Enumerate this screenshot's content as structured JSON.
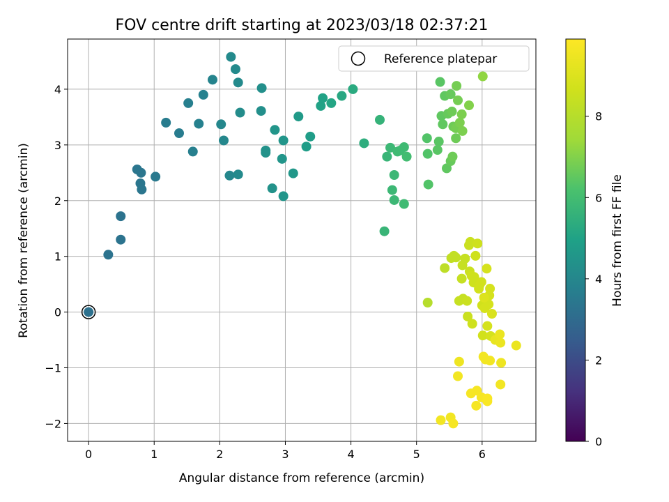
{
  "chart_data": {
    "type": "scatter",
    "title": "FOV centre drift starting at 2023/03/18 02:37:21",
    "xlabel": "Angular distance from reference (arcmin)",
    "ylabel": "Rotation from reference (arcmin)",
    "xlim": [
      -0.32,
      6.82
    ],
    "ylim": [
      -2.32,
      4.9
    ],
    "xticks": [
      0,
      1,
      2,
      3,
      4,
      5,
      6
    ],
    "yticks": [
      -2,
      -1,
      0,
      1,
      2,
      3,
      4
    ],
    "grid": true,
    "legend": {
      "label": "Reference platepar",
      "placement": "top-right"
    },
    "reference_point": {
      "x": 0,
      "y": 0
    },
    "colorbar": {
      "label": "Hours from first FF file",
      "colormap": "viridis",
      "range": [
        0,
        9.9
      ],
      "ticks": [
        0,
        2,
        4,
        6,
        8
      ]
    },
    "points": [
      {
        "x": 0.0,
        "y": 0.0,
        "c": 3.2
      },
      {
        "x": 0.3,
        "y": 1.03,
        "c": 3.3
      },
      {
        "x": 0.49,
        "y": 1.3,
        "c": 3.3
      },
      {
        "x": 0.49,
        "y": 1.72,
        "c": 3.3
      },
      {
        "x": 0.74,
        "y": 2.56,
        "c": 3.4
      },
      {
        "x": 0.8,
        "y": 2.5,
        "c": 3.4
      },
      {
        "x": 0.79,
        "y": 2.31,
        "c": 3.4
      },
      {
        "x": 0.81,
        "y": 2.2,
        "c": 3.4
      },
      {
        "x": 1.02,
        "y": 2.43,
        "c": 3.5
      },
      {
        "x": 1.18,
        "y": 3.4,
        "c": 3.6
      },
      {
        "x": 1.38,
        "y": 3.21,
        "c": 3.6
      },
      {
        "x": 1.52,
        "y": 3.75,
        "c": 3.7
      },
      {
        "x": 1.59,
        "y": 2.88,
        "c": 3.7
      },
      {
        "x": 1.68,
        "y": 3.38,
        "c": 3.8
      },
      {
        "x": 1.75,
        "y": 3.9,
        "c": 3.8
      },
      {
        "x": 1.89,
        "y": 4.17,
        "c": 3.9
      },
      {
        "x": 2.02,
        "y": 3.37,
        "c": 4.0
      },
      {
        "x": 2.06,
        "y": 3.08,
        "c": 4.0
      },
      {
        "x": 2.15,
        "y": 2.45,
        "c": 4.0
      },
      {
        "x": 2.17,
        "y": 4.58,
        "c": 4.1
      },
      {
        "x": 2.24,
        "y": 4.36,
        "c": 4.1
      },
      {
        "x": 2.28,
        "y": 4.12,
        "c": 4.1
      },
      {
        "x": 2.28,
        "y": 2.47,
        "c": 4.1
      },
      {
        "x": 2.31,
        "y": 3.58,
        "c": 4.2
      },
      {
        "x": 2.63,
        "y": 3.61,
        "c": 4.3
      },
      {
        "x": 2.64,
        "y": 4.02,
        "c": 4.3
      },
      {
        "x": 2.7,
        "y": 2.9,
        "c": 4.4
      },
      {
        "x": 2.7,
        "y": 2.86,
        "c": 4.4
      },
      {
        "x": 2.8,
        "y": 2.22,
        "c": 4.4
      },
      {
        "x": 2.84,
        "y": 3.27,
        "c": 4.5
      },
      {
        "x": 2.95,
        "y": 2.75,
        "c": 4.5
      },
      {
        "x": 2.97,
        "y": 3.08,
        "c": 4.5
      },
      {
        "x": 2.97,
        "y": 2.08,
        "c": 4.5
      },
      {
        "x": 3.12,
        "y": 2.49,
        "c": 4.6
      },
      {
        "x": 3.2,
        "y": 3.51,
        "c": 4.7
      },
      {
        "x": 3.32,
        "y": 2.97,
        "c": 4.8
      },
      {
        "x": 3.38,
        "y": 3.15,
        "c": 4.8
      },
      {
        "x": 3.54,
        "y": 3.7,
        "c": 5.0
      },
      {
        "x": 3.57,
        "y": 3.84,
        "c": 5.0
      },
      {
        "x": 3.7,
        "y": 3.75,
        "c": 5.1
      },
      {
        "x": 3.86,
        "y": 3.88,
        "c": 5.2
      },
      {
        "x": 4.03,
        "y": 4.0,
        "c": 5.3
      },
      {
        "x": 4.2,
        "y": 3.03,
        "c": 5.4
      },
      {
        "x": 4.44,
        "y": 3.45,
        "c": 5.6
      },
      {
        "x": 4.51,
        "y": 1.45,
        "c": 5.7
      },
      {
        "x": 4.55,
        "y": 2.79,
        "c": 5.7
      },
      {
        "x": 4.6,
        "y": 2.95,
        "c": 5.8
      },
      {
        "x": 4.63,
        "y": 2.19,
        "c": 5.8
      },
      {
        "x": 4.66,
        "y": 2.46,
        "c": 5.8
      },
      {
        "x": 4.66,
        "y": 2.01,
        "c": 5.8
      },
      {
        "x": 4.71,
        "y": 2.88,
        "c": 5.9
      },
      {
        "x": 4.75,
        "y": 2.9,
        "c": 5.9
      },
      {
        "x": 4.81,
        "y": 2.96,
        "c": 5.9
      },
      {
        "x": 4.81,
        "y": 1.94,
        "c": 5.9
      },
      {
        "x": 4.85,
        "y": 2.79,
        "c": 6.0
      },
      {
        "x": 5.16,
        "y": 3.12,
        "c": 6.3
      },
      {
        "x": 5.17,
        "y": 2.84,
        "c": 6.3
      },
      {
        "x": 5.18,
        "y": 2.29,
        "c": 6.3
      },
      {
        "x": 5.32,
        "y": 2.91,
        "c": 6.4
      },
      {
        "x": 5.34,
        "y": 3.06,
        "c": 6.4
      },
      {
        "x": 5.36,
        "y": 4.13,
        "c": 6.4
      },
      {
        "x": 5.38,
        "y": 3.52,
        "c": 6.5
      },
      {
        "x": 5.4,
        "y": 3.37,
        "c": 6.5
      },
      {
        "x": 5.43,
        "y": 3.88,
        "c": 6.5
      },
      {
        "x": 5.46,
        "y": 2.58,
        "c": 6.5
      },
      {
        "x": 5.48,
        "y": 3.56,
        "c": 6.6
      },
      {
        "x": 5.52,
        "y": 3.91,
        "c": 6.6
      },
      {
        "x": 5.52,
        "y": 2.71,
        "c": 6.6
      },
      {
        "x": 5.54,
        "y": 3.6,
        "c": 6.7
      },
      {
        "x": 5.55,
        "y": 2.79,
        "c": 6.7
      },
      {
        "x": 5.56,
        "y": 3.33,
        "c": 6.7
      },
      {
        "x": 5.6,
        "y": 3.12,
        "c": 6.7
      },
      {
        "x": 5.6,
        "y": 3.3,
        "c": 6.8
      },
      {
        "x": 5.61,
        "y": 4.06,
        "c": 6.8
      },
      {
        "x": 5.63,
        "y": 3.8,
        "c": 6.8
      },
      {
        "x": 5.66,
        "y": 3.4,
        "c": 6.9
      },
      {
        "x": 5.69,
        "y": 3.55,
        "c": 6.9
      },
      {
        "x": 5.7,
        "y": 3.25,
        "c": 6.9
      },
      {
        "x": 5.8,
        "y": 3.71,
        "c": 7.0
      },
      {
        "x": 6.01,
        "y": 4.23,
        "c": 7.2
      },
      {
        "x": 5.17,
        "y": 0.17,
        "c": 8.0
      },
      {
        "x": 5.43,
        "y": 0.79,
        "c": 8.2
      },
      {
        "x": 5.53,
        "y": 0.97,
        "c": 8.3
      },
      {
        "x": 5.57,
        "y": 1.01,
        "c": 8.3
      },
      {
        "x": 5.6,
        "y": 0.98,
        "c": 8.3
      },
      {
        "x": 5.65,
        "y": 0.2,
        "c": 8.4
      },
      {
        "x": 5.69,
        "y": 0.6,
        "c": 8.4
      },
      {
        "x": 5.7,
        "y": 0.84,
        "c": 8.4
      },
      {
        "x": 5.71,
        "y": 0.24,
        "c": 8.4
      },
      {
        "x": 5.74,
        "y": 0.96,
        "c": 8.4
      },
      {
        "x": 5.77,
        "y": 0.2,
        "c": 8.5
      },
      {
        "x": 5.78,
        "y": -0.08,
        "c": 8.5
      },
      {
        "x": 5.8,
        "y": 1.2,
        "c": 8.5
      },
      {
        "x": 5.81,
        "y": 0.73,
        "c": 8.5
      },
      {
        "x": 5.82,
        "y": 1.26,
        "c": 8.5
      },
      {
        "x": 5.84,
        "y": 0.65,
        "c": 8.6
      },
      {
        "x": 5.85,
        "y": -0.21,
        "c": 8.6
      },
      {
        "x": 5.87,
        "y": 0.53,
        "c": 8.6
      },
      {
        "x": 5.88,
        "y": 0.63,
        "c": 8.6
      },
      {
        "x": 5.9,
        "y": 1.01,
        "c": 8.6
      },
      {
        "x": 5.93,
        "y": 1.23,
        "c": 8.6
      },
      {
        "x": 5.95,
        "y": 0.42,
        "c": 8.7
      },
      {
        "x": 5.96,
        "y": 0.48,
        "c": 8.7
      },
      {
        "x": 5.99,
        "y": 0.54,
        "c": 8.7
      },
      {
        "x": 6.0,
        "y": 0.12,
        "c": 8.7
      },
      {
        "x": 6.01,
        "y": -0.42,
        "c": 8.7
      },
      {
        "x": 6.04,
        "y": 0.07,
        "c": 8.8
      },
      {
        "x": 6.07,
        "y": 0.78,
        "c": 8.8
      },
      {
        "x": 6.08,
        "y": -0.25,
        "c": 8.8
      },
      {
        "x": 6.1,
        "y": 0.14,
        "c": 8.8
      },
      {
        "x": 6.11,
        "y": 0.3,
        "c": 8.8
      },
      {
        "x": 6.12,
        "y": 0.42,
        "c": 8.8
      },
      {
        "x": 6.13,
        "y": -0.43,
        "c": 8.8
      },
      {
        "x": 6.15,
        "y": -0.03,
        "c": 8.9
      },
      {
        "x": 5.37,
        "y": -1.94,
        "c": 9.6
      },
      {
        "x": 5.52,
        "y": -1.89,
        "c": 9.6
      },
      {
        "x": 5.56,
        "y": -2.0,
        "c": 9.7
      },
      {
        "x": 5.63,
        "y": -1.15,
        "c": 9.6
      },
      {
        "x": 5.65,
        "y": -0.89,
        "c": 9.5
      },
      {
        "x": 5.83,
        "y": -1.46,
        "c": 9.7
      },
      {
        "x": 5.92,
        "y": -1.41,
        "c": 9.7
      },
      {
        "x": 5.91,
        "y": -1.68,
        "c": 9.7
      },
      {
        "x": 5.99,
        "y": -1.53,
        "c": 9.7
      },
      {
        "x": 6.02,
        "y": -0.8,
        "c": 9.6
      },
      {
        "x": 6.03,
        "y": 0.26,
        "c": 9.0
      },
      {
        "x": 6.05,
        "y": -0.85,
        "c": 9.6
      },
      {
        "x": 6.08,
        "y": -1.55,
        "c": 9.8
      },
      {
        "x": 6.08,
        "y": -1.6,
        "c": 9.8
      },
      {
        "x": 6.12,
        "y": -0.87,
        "c": 9.6
      },
      {
        "x": 6.2,
        "y": -0.5,
        "c": 9.3
      },
      {
        "x": 6.27,
        "y": -0.4,
        "c": 9.4
      },
      {
        "x": 6.28,
        "y": -0.55,
        "c": 9.4
      },
      {
        "x": 6.29,
        "y": -0.91,
        "c": 9.5
      },
      {
        "x": 6.28,
        "y": -1.3,
        "c": 9.6
      },
      {
        "x": 6.52,
        "y": -0.6,
        "c": 9.4
      }
    ]
  }
}
